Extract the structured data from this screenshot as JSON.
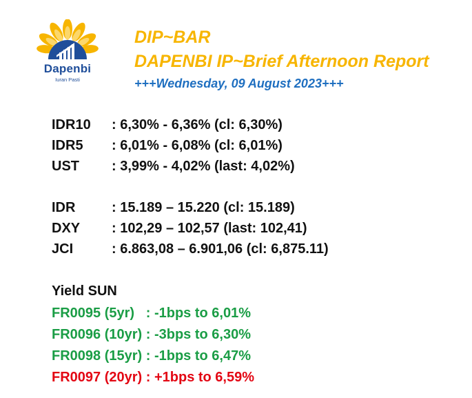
{
  "logo": {
    "name": "Dapenbi",
    "tagline": "Iuran Pasti"
  },
  "header": {
    "title": "DIP~BAR",
    "subtitle": "DAPENBI IP~Brief Afternoon Report",
    "date": "+++Wednesday, 09 August 2023+++"
  },
  "bonds": [
    {
      "label": "IDR10",
      "value": ": 6,30% - 6,36% (cl: 6,30%)"
    },
    {
      "label": "IDR5",
      "value": ": 6,01% - 6,08% (cl: 6,01%)"
    },
    {
      "label": "UST",
      "value": ": 3,99% - 4,02% (last: 4,02%)"
    }
  ],
  "markets": [
    {
      "label": "IDR",
      "value": ": 15.189 – 15.220 (cl: 15.189)"
    },
    {
      "label": "DXY",
      "value": ": 102,29 – 102,57 (last: 102,41)"
    },
    {
      "label": "JCI",
      "value": ": 6.863,08 – 6.901,06 (cl: 6,875.11)"
    }
  ],
  "yield_sun": {
    "heading": "Yield SUN",
    "items": [
      {
        "text": "FR0095 (5yr)   : -1bps to 6,01%",
        "color": "#1a9d45"
      },
      {
        "text": "FR0096 (10yr) : -3bps to 6,30%",
        "color": "#1a9d45"
      },
      {
        "text": "FR0098 (15yr) : -1bps to 6,47%",
        "color": "#1a9d45"
      },
      {
        "text": "FR0097 (20yr) : +1bps to 6,59%",
        "color": "#e30613"
      }
    ]
  }
}
